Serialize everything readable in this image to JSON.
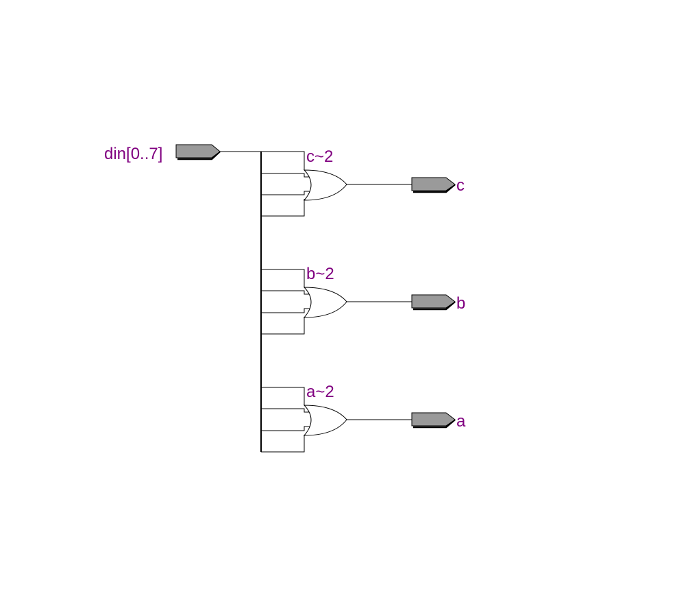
{
  "input_port": {
    "label": "din[0..7]"
  },
  "gates": [
    {
      "instance": "c~2",
      "output": "c"
    },
    {
      "instance": "b~2",
      "output": "b"
    },
    {
      "instance": "a~2",
      "output": "a"
    }
  ],
  "colors": {
    "label": "#800080",
    "port_fill": "#9a9a9a",
    "wire": "#000000",
    "background": "#ffffff"
  }
}
